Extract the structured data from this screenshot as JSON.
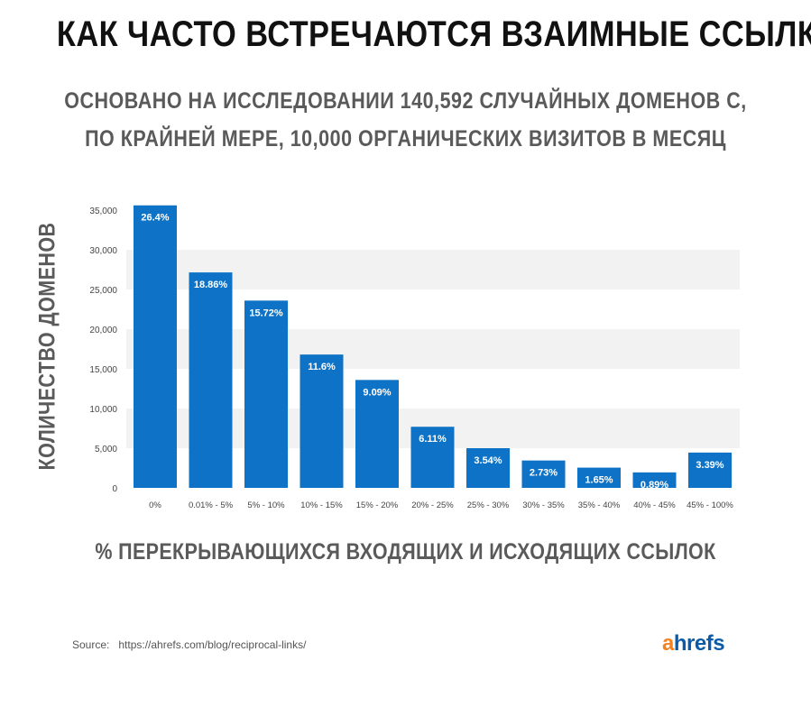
{
  "title": "КАК ЧАСТО ВСТРЕЧАЮТСЯ ВЗАИМНЫЕ ССЫЛКИ",
  "subtitle_line1": "ОСНОВАНО НА ИССЛЕДОВАНИИ 140,592 СЛУЧАЙНЫХ ДОМЕНОВ С,",
  "subtitle_line2": "ПО КРАЙНЕЙ МЕРЕ, 10,000 ОРГАНИЧЕСКИХ ВИЗИТОВ В МЕСЯЦ",
  "source": {
    "label": "Source:",
    "url": "https://ahrefs.com/blog/reciprocal-links/"
  },
  "logo": {
    "first": "a",
    "rest": "hrefs",
    "colors": {
      "first": "#f58220",
      "rest": "#0a5ba8"
    }
  },
  "chart_data": {
    "type": "bar",
    "title": "КАК ЧАСТО ВСТРЕЧАЮТСЯ ВЗАИМНЫЕ ССЫЛКИ",
    "xlabel": "% ПЕРЕКРЫВАЮЩИХСЯ ВХОДЯЩИХ И ИСХОДЯЩИХ ССЫЛОК",
    "ylabel": "КОЛИЧЕСТВО ДОМЕНОВ",
    "categories": [
      "0%",
      "0.01% - 5%",
      "5% - 10%",
      "10% - 15%",
      "15% - 20%",
      "20% - 25%",
      "25% - 30%",
      "30% - 35%",
      "35% - 40%",
      "40% - 45%",
      "45% - 100%"
    ],
    "values": [
      35600,
      27150,
      23600,
      16800,
      13600,
      7700,
      5000,
      3450,
      2550,
      1950,
      4450
    ],
    "data_labels": [
      "26.4%",
      "18.86%",
      "15.72%",
      "11.6%",
      "9.09%",
      "6.11%",
      "3.54%",
      "2.73%",
      "1.65%",
      "0.89%",
      "3.39%"
    ],
    "ylim": [
      0,
      35000
    ],
    "yticks": [
      0,
      5000,
      10000,
      15000,
      20000,
      25000,
      30000,
      35000
    ],
    "ytick_labels": [
      "0",
      "5,000",
      "10,000",
      "15,000",
      "20,000",
      "25,000",
      "30,000",
      "35,000"
    ],
    "bar_color": "#0e73c6",
    "band_color": "#f2f2f2",
    "grid": true,
    "legend": "none"
  }
}
